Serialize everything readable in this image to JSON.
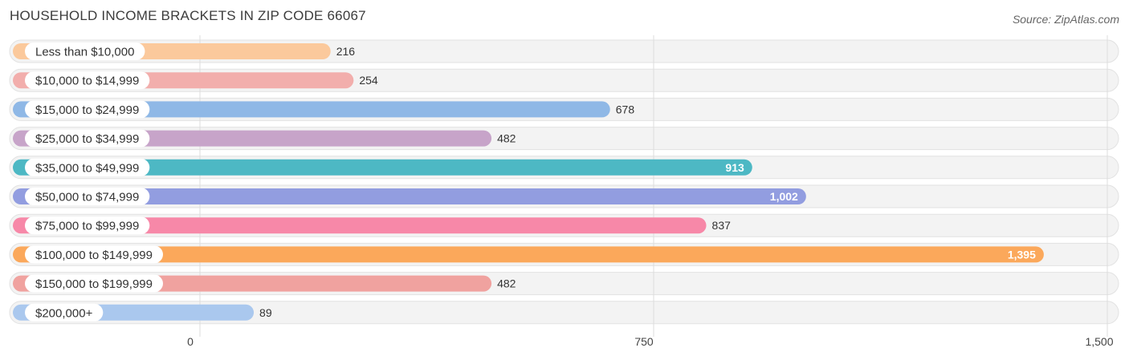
{
  "header": {
    "title": "HOUSEHOLD INCOME BRACKETS IN ZIP CODE 66067",
    "source": "Source: ZipAtlas.com"
  },
  "chart_data": {
    "type": "bar",
    "orientation": "horizontal",
    "title": "HOUSEHOLD INCOME BRACKETS IN ZIP CODE 66067",
    "categories": [
      "Less than $10,000",
      "$10,000 to $14,999",
      "$15,000 to $24,999",
      "$25,000 to $34,999",
      "$35,000 to $49,999",
      "$50,000 to $74,999",
      "$75,000 to $99,999",
      "$100,000 to $149,999",
      "$150,000 to $199,999",
      "$200,000+"
    ],
    "values": [
      216,
      254,
      678,
      482,
      913,
      1002,
      837,
      1395,
      482,
      89
    ],
    "value_labels": [
      "216",
      "254",
      "678",
      "482",
      "913",
      "1,002",
      "837",
      "1,395",
      "482",
      "89"
    ],
    "colors": [
      "#fbc99c",
      "#f2aeac",
      "#8fb8e6",
      "#c7a4c9",
      "#4db8c4",
      "#929de0",
      "#f788a8",
      "#fba85b",
      "#f0a29f",
      "#aac8ee"
    ],
    "xlim": [
      0,
      1500
    ],
    "ticks": [
      0,
      750,
      1500
    ],
    "tick_labels": [
      "0",
      "750",
      "1,500"
    ],
    "grid": true,
    "xlabel": "",
    "ylabel": ""
  }
}
